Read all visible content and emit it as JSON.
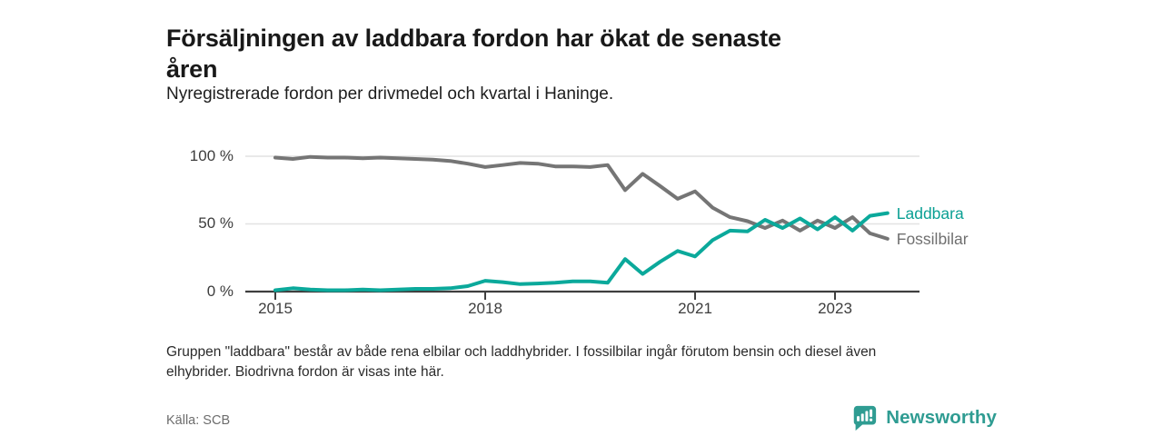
{
  "header": {
    "title_lines": [
      "Försäljningen av laddbara fordon har ökat de senaste",
      "åren"
    ],
    "subtitle": "Nyregistrerade fordon per drivmedel och kvartal i Haninge."
  },
  "chart_data": {
    "type": "line",
    "title": "Nyregistrerade fordon per drivmedel och kvartal i Haninge",
    "xlabel": "",
    "ylabel": "",
    "unit": "%",
    "ylim": [
      0,
      100
    ],
    "grid": "horizontal",
    "legend_position": "end-of-line-labels",
    "x": [
      "2015-K1",
      "2015-K2",
      "2015-K3",
      "2015-K4",
      "2016-K1",
      "2016-K2",
      "2016-K3",
      "2016-K4",
      "2017-K1",
      "2017-K2",
      "2017-K3",
      "2017-K4",
      "2018-K1",
      "2018-K2",
      "2018-K3",
      "2018-K4",
      "2019-K1",
      "2019-K2",
      "2019-K3",
      "2019-K4",
      "2020-K1",
      "2020-K2",
      "2020-K3",
      "2020-K4",
      "2021-K1",
      "2021-K2",
      "2021-K3",
      "2021-K4",
      "2022-K1",
      "2022-K2",
      "2022-K3",
      "2022-K4",
      "2023-K1",
      "2023-K2",
      "2023-K3",
      "2023-K4"
    ],
    "series": [
      {
        "name": "Fossilbilar",
        "color": "#757575",
        "values": [
          99,
          98,
          99.5,
          99,
          99,
          98.5,
          99,
          98.5,
          98,
          97.5,
          96.5,
          94.5,
          92,
          93.5,
          95,
          94.5,
          92.5,
          92.5,
          92,
          93.5,
          75,
          87,
          78,
          68.5,
          74,
          62,
          55,
          52,
          47,
          52.5,
          45,
          52.5,
          47,
          55,
          43,
          39
        ]
      },
      {
        "name": "Laddbara",
        "color": "#0ba99b",
        "values": [
          1,
          2.5,
          1.5,
          1,
          1,
          1.5,
          1,
          1.5,
          2,
          2,
          2.5,
          4,
          8,
          7,
          5.5,
          6,
          6.5,
          7.5,
          7.5,
          6.5,
          24,
          13,
          22,
          30,
          26,
          38,
          45,
          44.5,
          53,
          47,
          54,
          46,
          55,
          45,
          56,
          58
        ]
      }
    ],
    "y_ticks": [
      {
        "label": "100 %",
        "value": 100
      },
      {
        "label": "50 %",
        "value": 50
      },
      {
        "label": "0 %",
        "value": 0
      }
    ],
    "x_ticks": [
      {
        "label": "2015",
        "quarter_index": 0
      },
      {
        "label": "2018",
        "quarter_index": 12
      },
      {
        "label": "2021",
        "quarter_index": 24
      },
      {
        "label": "2023",
        "quarter_index": 32
      }
    ]
  },
  "footnote_lines": [
    "Gruppen \"laddbara\" består av både rena elbilar och laddhybrider. I fossilbilar ingår förutom bensin och diesel även",
    "elhybrider. Biodrivna fordon är visas inte här."
  ],
  "source": "Källa: SCB",
  "logo": {
    "text": "Newsworthy"
  },
  "colors": {
    "laddbara": "#0ba99b",
    "fossilbilar": "#757575",
    "axis": "#3f3f3f",
    "gridline": "#e2e2e2",
    "brand": "#2f9c92"
  }
}
